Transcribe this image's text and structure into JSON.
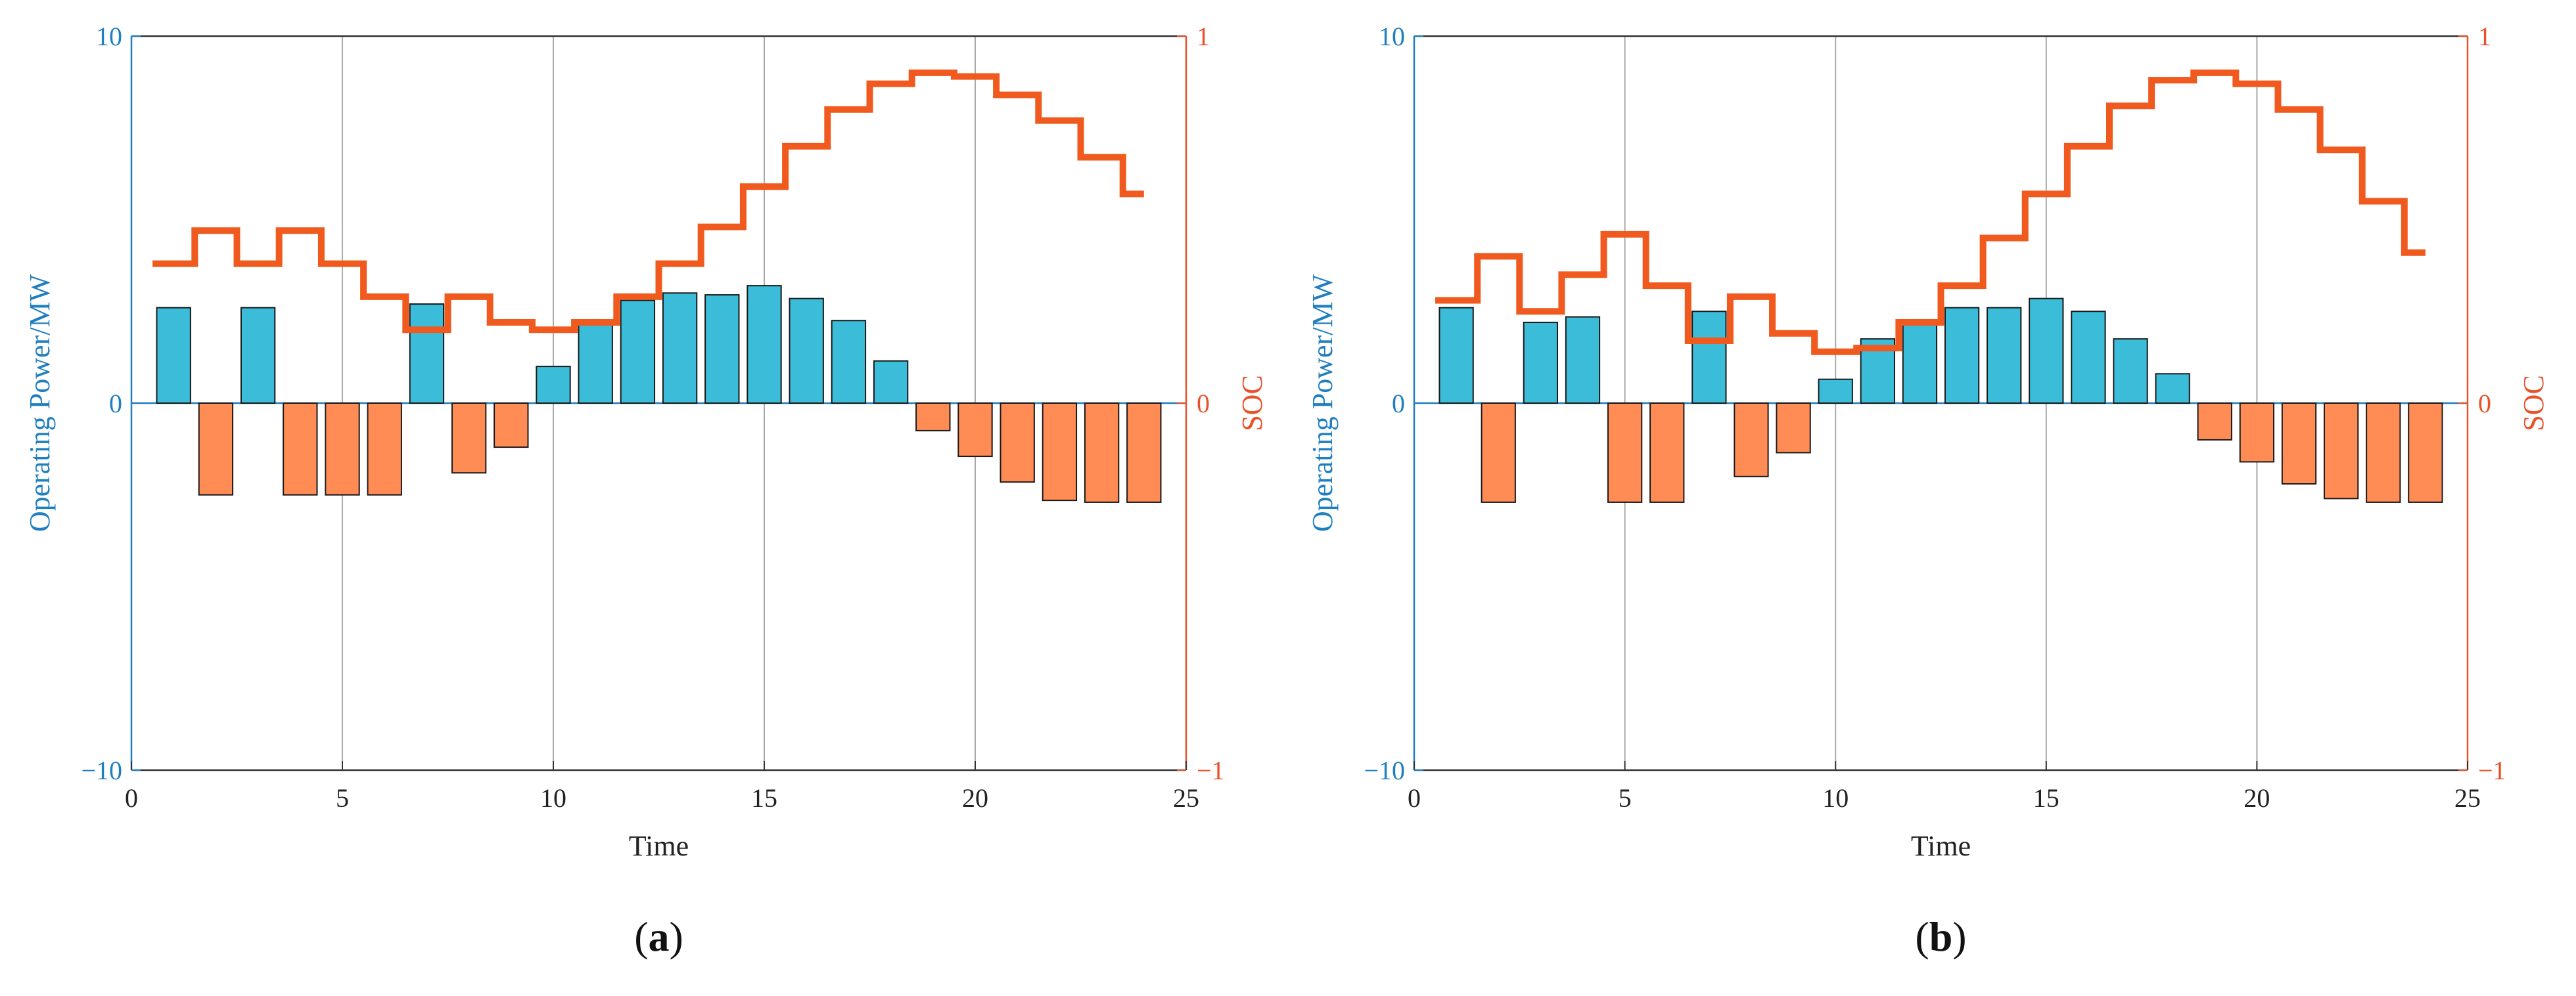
{
  "colors": {
    "power_axis": "#1f7fbf",
    "soc_axis": "#e8522a",
    "charge_bar": "#3bbcd8",
    "discharge_bar": "#ff8c55",
    "soc_line": "#f05a1e",
    "grid": "#a9a9a9",
    "frame": "#333333"
  },
  "chart_data": [
    {
      "type": "bar",
      "panel_label": "(a)",
      "panel_letter": "a",
      "xlabel": "Time",
      "ylabel": "Operating Power/MW",
      "y2label": "SOC",
      "xlim": [
        0,
        25
      ],
      "ylim": [
        -10,
        10
      ],
      "y2lim": [
        -1,
        1
      ],
      "xticks": [
        0,
        5,
        10,
        15,
        20,
        25
      ],
      "yticks": [
        -10,
        0,
        10
      ],
      "y2ticks": [
        -1,
        0,
        1
      ],
      "x_gridlines": [
        5,
        10,
        15,
        20
      ],
      "series": [
        {
          "name": "Operating Power",
          "axis": "left",
          "x": [
            1,
            2,
            3,
            4,
            5,
            6,
            7,
            8,
            9,
            10,
            11,
            12,
            13,
            14,
            15,
            16,
            17,
            18,
            19,
            20,
            21,
            22,
            23,
            24
          ],
          "values": [
            2.6,
            -2.5,
            2.6,
            -2.5,
            -2.5,
            -2.5,
            2.7,
            -1.9,
            -1.2,
            1.0,
            2.2,
            2.8,
            3.0,
            2.95,
            3.2,
            2.85,
            2.25,
            1.15,
            -0.75,
            -1.45,
            -2.15,
            -2.65,
            -2.7,
            -2.7
          ]
        },
        {
          "name": "SOC",
          "axis": "right",
          "type": "step",
          "x": [
            0.5,
            1.5,
            2.5,
            3.5,
            4.5,
            5.5,
            6.5,
            7.5,
            8.5,
            9.5,
            10.5,
            11.5,
            12.5,
            13.5,
            14.5,
            15.5,
            16.5,
            17.5,
            18.5,
            19.5,
            20.5,
            21.5,
            22.5,
            23.5,
            24.0
          ],
          "values": [
            0.38,
            0.47,
            0.38,
            0.47,
            0.38,
            0.29,
            0.2,
            0.29,
            0.22,
            0.2,
            0.22,
            0.29,
            0.38,
            0.48,
            0.59,
            0.7,
            0.8,
            0.87,
            0.9,
            0.89,
            0.84,
            0.77,
            0.67,
            0.57,
            0.57
          ]
        }
      ]
    },
    {
      "type": "bar",
      "panel_label": "(b)",
      "panel_letter": "b",
      "xlabel": "Time",
      "ylabel": "Operating Power/MW",
      "y2label": "SOC",
      "xlim": [
        0,
        25
      ],
      "ylim": [
        -10,
        10
      ],
      "y2lim": [
        -1,
        1
      ],
      "xticks": [
        0,
        5,
        10,
        15,
        20,
        25
      ],
      "yticks": [
        -10,
        0,
        10
      ],
      "y2ticks": [
        -1,
        0,
        1
      ],
      "x_gridlines": [
        5,
        10,
        15,
        20
      ],
      "series": [
        {
          "name": "Operating Power",
          "axis": "left",
          "x": [
            1,
            2,
            3,
            4,
            5,
            6,
            7,
            8,
            9,
            10,
            11,
            12,
            13,
            14,
            15,
            16,
            17,
            18,
            19,
            20,
            21,
            22,
            23,
            24
          ],
          "values": [
            2.6,
            -2.7,
            2.2,
            2.35,
            -2.7,
            -2.7,
            2.5,
            -2.0,
            -1.35,
            0.65,
            1.75,
            2.2,
            2.6,
            2.6,
            2.85,
            2.5,
            1.75,
            0.8,
            -1.0,
            -1.6,
            -2.2,
            -2.6,
            -2.7,
            -2.7
          ]
        },
        {
          "name": "SOC",
          "axis": "right",
          "type": "step",
          "x": [
            0.5,
            1.5,
            2.5,
            3.5,
            4.5,
            5.5,
            6.5,
            7.5,
            8.5,
            9.5,
            10.5,
            11.5,
            12.5,
            13.5,
            14.5,
            15.5,
            16.5,
            17.5,
            18.5,
            19.5,
            20.5,
            21.5,
            22.5,
            23.5,
            24.0
          ],
          "values": [
            0.28,
            0.4,
            0.25,
            0.35,
            0.46,
            0.32,
            0.17,
            0.29,
            0.19,
            0.14,
            0.15,
            0.22,
            0.32,
            0.45,
            0.57,
            0.7,
            0.81,
            0.88,
            0.9,
            0.87,
            0.8,
            0.69,
            0.55,
            0.41,
            0.41
          ]
        }
      ]
    }
  ]
}
